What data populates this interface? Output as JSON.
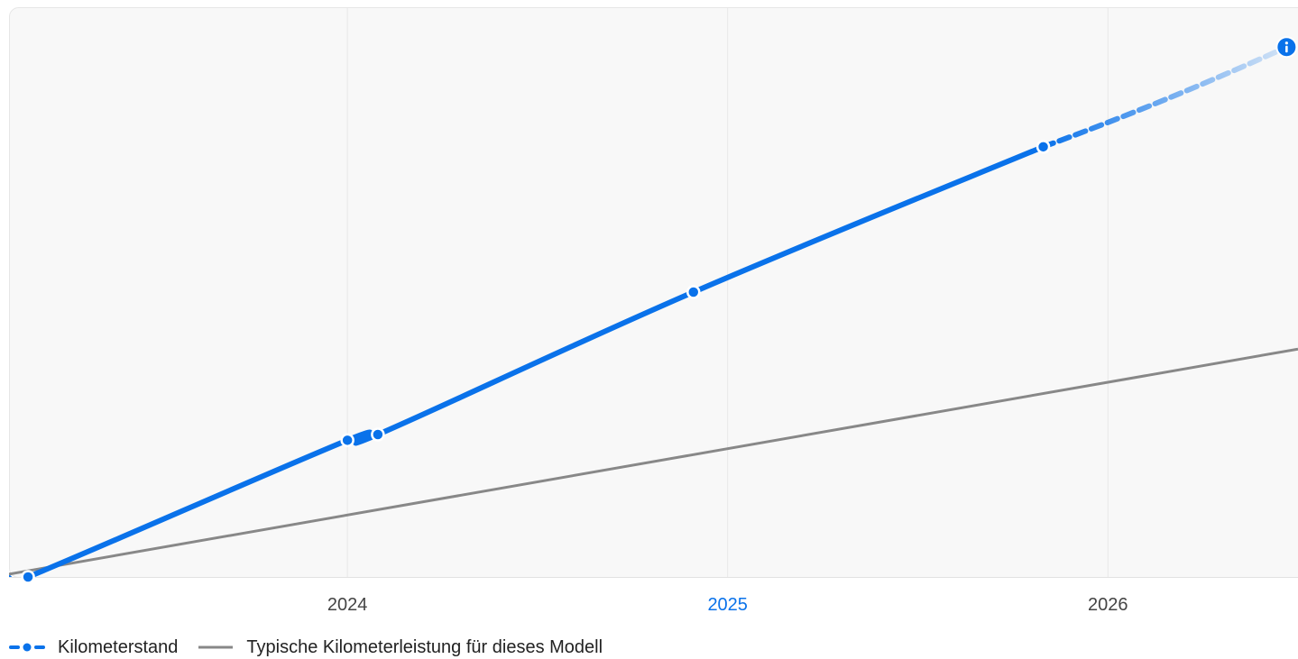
{
  "chart_data": {
    "type": "line",
    "title": "",
    "xlabel": "",
    "ylabel": "",
    "x_ticks": [
      {
        "label": "2024",
        "x": 2024.0,
        "highlight": false
      },
      {
        "label": "2025",
        "x": 2025.0,
        "highlight": true
      },
      {
        "label": "2026",
        "x": 2026.0,
        "highlight": false
      }
    ],
    "xlim": [
      2023.11,
      2026.5
    ],
    "ylim": [
      0,
      100
    ],
    "grid": "vertical",
    "legend_position": "bottom-left",
    "series": [
      {
        "name": "Kilometerstand",
        "color": "#0a72ea",
        "style": "solid-with-dotted-forecast",
        "points": [
          {
            "x": 2023.16,
            "y": 0
          },
          {
            "x": 2024.0,
            "y": 24
          },
          {
            "x": 2024.08,
            "y": 25
          },
          {
            "x": 2024.91,
            "y": 50
          },
          {
            "x": 2025.83,
            "y": 75.5
          }
        ],
        "forecast": [
          {
            "x": 2025.83,
            "y": 75.5
          },
          {
            "x": 2026.47,
            "y": 93
          }
        ]
      },
      {
        "name": "Typische Kilometerleistung für dieses Modell",
        "color": "#888888",
        "style": "solid",
        "points": [
          {
            "x": 2023.11,
            "y": 0.5
          },
          {
            "x": 2026.5,
            "y": 40
          }
        ]
      }
    ],
    "annotations": [
      {
        "type": "info-icon",
        "x": 2026.47,
        "y": 93,
        "color": "#0a72ea"
      }
    ]
  },
  "legend": {
    "items": [
      {
        "label": "Kilometerstand"
      },
      {
        "label": "Typische Kilometerleistung für dieses Modell"
      }
    ]
  },
  "colors": {
    "accent": "#0a72ea",
    "typical_line": "#888888",
    "plot_background": "#f8f8f8",
    "grid": "#e8e8e8",
    "highlight_tick": "#0a72ea",
    "tick": "#444444"
  }
}
